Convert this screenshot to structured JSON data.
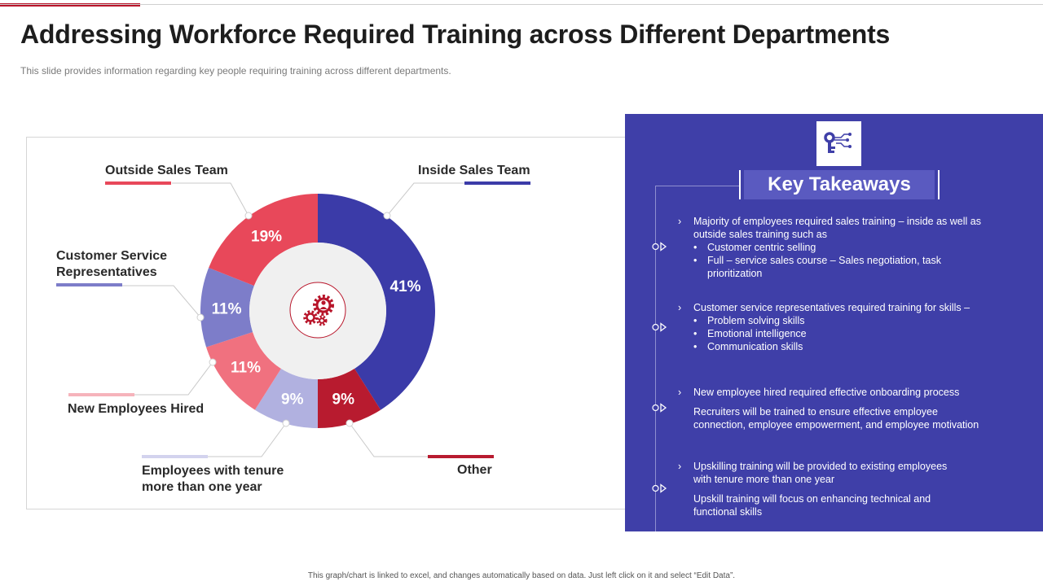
{
  "title": "Addressing Workforce Required Training across Different Departments",
  "subtitle": "This slide provides  information  regarding  key people  requiring  training across different  departments.",
  "footer": "This graph/chart is linked to excel, and changes automatically based on data. Just left click on it and select “Edit Data”.",
  "colors": {
    "brand_red": "#b8152a",
    "panel_bg": "#3f3fa8",
    "title_box": "#5a5ac0"
  },
  "chart_data": {
    "type": "pie",
    "subtype": "donut",
    "legend_placement": "around",
    "slices": [
      {
        "name": "Inside Sales Team",
        "value": 41,
        "label": "41%",
        "color": "#3b3ba8"
      },
      {
        "name": "Other",
        "value": 9,
        "label": "9%",
        "color": "#b81b2f"
      },
      {
        "name": "Employees with tenure more than one year",
        "value": 9,
        "label": "9%",
        "color": "#b1b1e0"
      },
      {
        "name": "New Employees Hired",
        "value": 11,
        "label": "11%",
        "color": "#f0717f"
      },
      {
        "name": "Customer Service Representatives",
        "value": 11,
        "label": "11%",
        "color": "#7d7dc9"
      },
      {
        "name": "Outside Sales Team",
        "value": 19,
        "label": "19%",
        "color": "#e8485a"
      }
    ],
    "legend_labels": {
      "outside_sales": "Outside Sales Team",
      "inside_sales": "Inside Sales Team",
      "customer_service_l1": "Customer Service",
      "customer_service_l2": "Representatives",
      "new_employees": "New Employees Hired",
      "tenure_l1": "Employees with tenure",
      "tenure_l2": "more than one year",
      "other": "Other"
    }
  },
  "center_icon": "gears-icon",
  "panel": {
    "icon": "key-circuit-icon",
    "heading": "Key Takeaways",
    "chevron": "›",
    "bullet": "•",
    "t1": {
      "l1": "Majority of employees required  sales training – inside as well as",
      "l2": "outside sales training  such as",
      "b1": "Customer centric selling",
      "b2a": "Full – service  sales course – Sales negotiation, task",
      "b2b": "prioritization"
    },
    "t2": {
      "l1": "Customer service representatives  required  training for skills –",
      "b1": "Problem solving skills",
      "b2": "Emotional intelligence",
      "b3": "Communication  skills"
    },
    "t3": {
      "l1": "New employee hired required effective onboarding process",
      "p1": "Recruiters will be trained to ensure effective  employee",
      "p2": "connection,  employee empowerment,  and employee motivation"
    },
    "t4": {
      "l1": "Upskilling training will be provided  to existing employees",
      "l2": "with tenure more than one year",
      "p1": "Upskill training will focus on enhancing technical and",
      "p2": "functional skills"
    }
  }
}
